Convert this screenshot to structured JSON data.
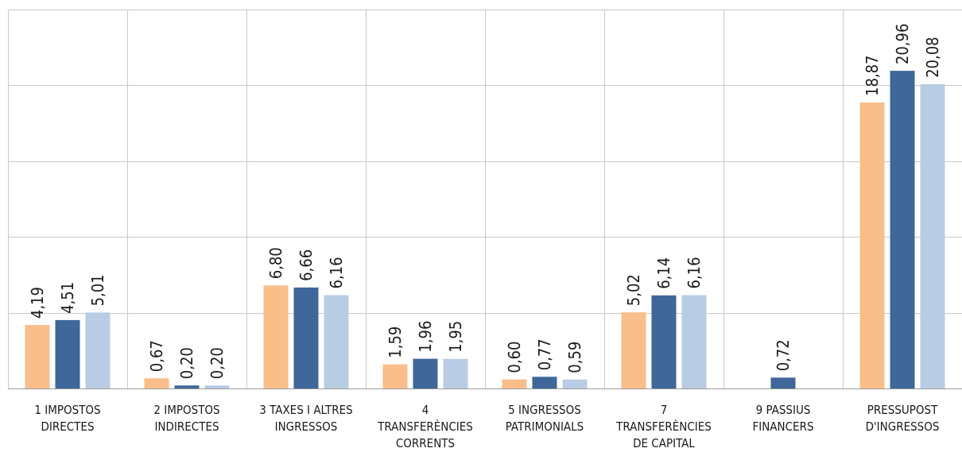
{
  "chart_data": {
    "type": "bar",
    "title": "",
    "xlabel": "",
    "ylabel": "",
    "ylim": [
      0,
      25
    ],
    "grid": true,
    "legend": "none",
    "categories": [
      [
        "1 IMPOSTOS",
        "DIRECTES"
      ],
      [
        "2 IMPOSTOS",
        "INDIRECTES"
      ],
      [
        "3 TAXES I ALTRES",
        "INGRESSOS"
      ],
      [
        "4",
        "TRANSFERÈNCIES",
        "CORRENTS"
      ],
      [
        "5 INGRESSOS",
        "PATRIMONIALS"
      ],
      [
        "7",
        "TRANSFERÈNCIES",
        "DE CAPITAL"
      ],
      [
        "9 PASSIUS",
        "FINANCERS"
      ],
      [
        "PRESSUPOST",
        "D'INGRESSOS"
      ]
    ],
    "series": [
      {
        "color": "#F9BE8A",
        "values": [
          4.19,
          0.67,
          6.8,
          1.59,
          0.6,
          5.02,
          null,
          18.87
        ],
        "labels": [
          "4,19",
          "0,67",
          "6,80",
          "1,59",
          "0,60",
          "5,02",
          "",
          "18,87"
        ]
      },
      {
        "color": "#3F6799",
        "values": [
          4.51,
          0.2,
          6.66,
          1.96,
          0.77,
          6.14,
          0.72,
          20.96
        ],
        "labels": [
          "4,51",
          "0,20",
          "6,66",
          "1,96",
          "0,77",
          "6,14",
          "0,72",
          "20,96"
        ]
      },
      {
        "color": "#B8CCE4",
        "values": [
          5.01,
          0.2,
          6.16,
          1.95,
          0.59,
          6.16,
          null,
          20.08
        ],
        "labels": [
          "5,01",
          "0,20",
          "6,16",
          "1,95",
          "0,59",
          "6,16",
          "",
          "20,08"
        ]
      }
    ]
  }
}
